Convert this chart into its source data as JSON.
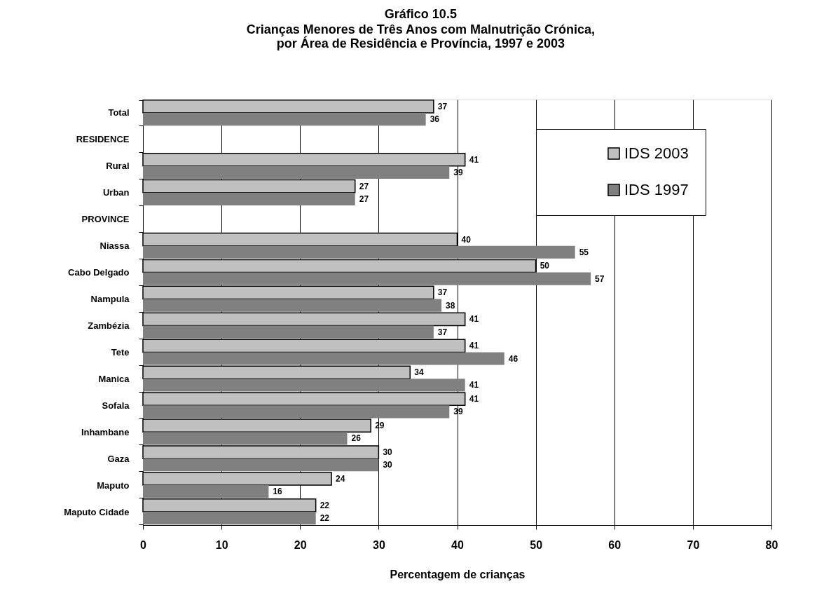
{
  "chart_data": {
    "type": "bar",
    "orientation": "horizontal",
    "title": "Gráfico 10.5",
    "subtitle": "Crianças Menores de Três Anos com Malnutrição Crónica,\npor Área de Residência e Província, 1997 e 2003",
    "xlabel": "Percentagem de crianças",
    "categories": [
      "Total",
      "RESIDENCE",
      "Rural",
      "Urban",
      "PROVINCE",
      "Niassa",
      "Cabo Delgado",
      "Nampula",
      "Zambézia",
      "Tete",
      "Manica",
      "Sofala",
      "Inhambane",
      "Gaza",
      "Maputo",
      "Maputo Cidade"
    ],
    "series": [
      {
        "name": "IDS 2003",
        "color": "#c0c0c0",
        "values": [
          37,
          null,
          41,
          27,
          null,
          40,
          50,
          37,
          41,
          41,
          34,
          41,
          29,
          30,
          24,
          22
        ]
      },
      {
        "name": "IDS 1997",
        "color": "#808080",
        "values": [
          36,
          null,
          39,
          27,
          null,
          55,
          57,
          38,
          37,
          46,
          41,
          39,
          26,
          30,
          16,
          22
        ]
      }
    ],
    "xlim": [
      0,
      80
    ],
    "xticks": [
      0,
      10,
      20,
      30,
      40,
      50,
      60,
      70,
      80
    ],
    "grid": "x",
    "legend": "top right",
    "data_labels": true
  }
}
